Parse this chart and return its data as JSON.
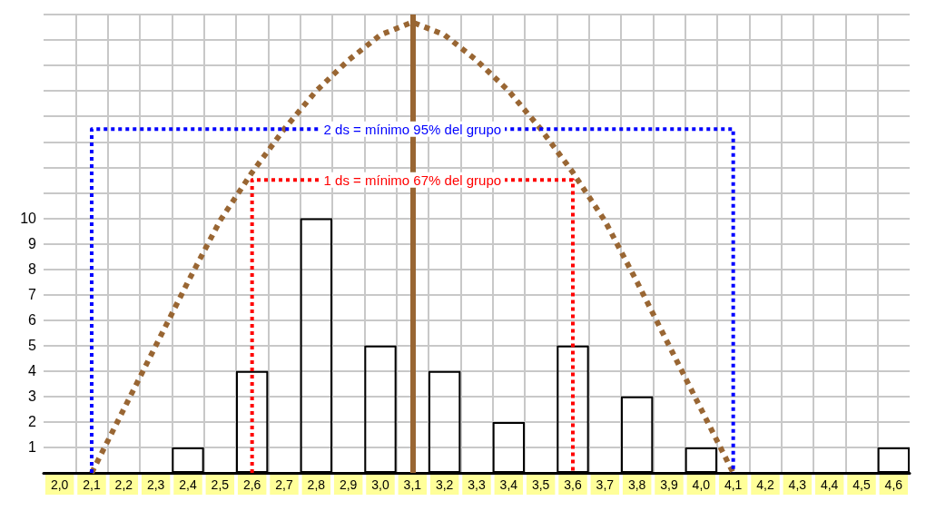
{
  "chart_data": {
    "type": "bar",
    "series": [
      {
        "color": "#000000",
        "x": [
          2.0,
          2.1,
          2.2,
          2.3,
          2.4,
          2.5,
          2.6,
          2.7,
          2.8,
          2.9,
          3.0,
          3.1,
          3.2,
          3.3,
          3.4,
          3.5,
          3.6,
          3.7,
          3.8,
          3.9,
          4.0,
          4.1,
          4.2,
          4.3,
          4.4,
          4.5,
          4.6
        ],
        "values": [
          0,
          0,
          0,
          0,
          1,
          0,
          4,
          0,
          10,
          0,
          5,
          0,
          4,
          0,
          2,
          0,
          5,
          0,
          3,
          0,
          1,
          0,
          0,
          0,
          0,
          0,
          1
        ]
      },
      {
        "type": "line",
        "color": "#996633",
        "line_style": "dotted",
        "x": [
          2.1,
          2.2,
          2.3,
          2.4,
          2.5,
          2.6,
          2.7,
          2.8,
          2.9,
          3.0,
          3.1,
          3.2,
          3.3,
          3.4,
          3.5,
          3.6,
          3.7,
          3.8,
          3.9,
          4.0,
          4.1
        ],
        "values": [
          0,
          2.5,
          5.0,
          7.5,
          9.9,
          11.8,
          13.5,
          15.0,
          16.2,
          17.2,
          17.7,
          17.2,
          16.2,
          15.0,
          13.5,
          11.8,
          9.9,
          7.5,
          5.0,
          2.5,
          0
        ]
      },
      {
        "type": "line",
        "name": "2 ds = mínimo 95% del grupo",
        "color": "#0000ff",
        "line_style": "dotted",
        "x": [
          2.1,
          2.1,
          4.1,
          4.1
        ],
        "values": [
          0,
          13.5,
          13.5,
          0
        ]
      },
      {
        "type": "line",
        "name": "1 ds = mínimo 67% del grupo",
        "color": "#ff0000",
        "line_style": "dotted",
        "x": [
          2.6,
          2.6,
          3.6,
          3.6
        ],
        "values": [
          0,
          11.5,
          11.5,
          0
        ]
      }
    ],
    "marker": "none",
    "xlim": [
      1.95,
      4.65
    ],
    "xticks": [
      {
        "value": 2.0,
        "label": "2,0"
      },
      {
        "value": 2.1,
        "label": "2,1"
      },
      {
        "value": 2.2,
        "label": "2,2"
      },
      {
        "value": 2.3,
        "label": "2,3"
      },
      {
        "value": 2.4,
        "label": "2,4"
      },
      {
        "value": 2.5,
        "label": "2,5"
      },
      {
        "value": 2.6,
        "label": "2,6"
      },
      {
        "value": 2.7,
        "label": "2,7"
      },
      {
        "value": 2.8,
        "label": "2,8"
      },
      {
        "value": 2.9,
        "label": "2,9"
      },
      {
        "value": 3.0,
        "label": "3,0"
      },
      {
        "value": 3.1,
        "label": "3,1"
      },
      {
        "value": 3.2,
        "label": "3,2"
      },
      {
        "value": 3.3,
        "label": "3,3"
      },
      {
        "value": 3.4,
        "label": "3,4"
      },
      {
        "value": 3.5,
        "label": "3,5"
      },
      {
        "value": 3.6,
        "label": "3,6"
      },
      {
        "value": 3.7,
        "label": "3,7"
      },
      {
        "value": 3.8,
        "label": "3,8"
      },
      {
        "value": 3.9,
        "label": "3,9"
      },
      {
        "value": 4.0,
        "label": "4,0"
      },
      {
        "value": 4.1,
        "label": "4,1"
      },
      {
        "value": 4.2,
        "label": "4,2"
      },
      {
        "value": 4.3,
        "label": "4,3"
      },
      {
        "value": 4.4,
        "label": "4,4"
      },
      {
        "value": 4.5,
        "label": "4,5"
      },
      {
        "value": 4.6,
        "label": "4,6"
      },
      {
        "value": 2.05,
        "label": null
      },
      {
        "value": 2.15,
        "label": null
      },
      {
        "value": 2.25,
        "label": null
      },
      {
        "value": 2.35,
        "label": null
      },
      {
        "value": 2.45,
        "label": null
      },
      {
        "value": 2.55,
        "label": null
      },
      {
        "value": 2.65,
        "label": null
      },
      {
        "value": 2.75,
        "label": null
      },
      {
        "value": 2.85,
        "label": null
      },
      {
        "value": 2.95,
        "label": null
      },
      {
        "value": 3.05,
        "label": null
      },
      {
        "value": 3.15,
        "label": null
      },
      {
        "value": 3.25,
        "label": null
      },
      {
        "value": 3.35,
        "label": null
      },
      {
        "value": 3.45,
        "label": null
      },
      {
        "value": 3.55,
        "label": null
      },
      {
        "value": 3.65,
        "label": null
      },
      {
        "value": 3.75,
        "label": null
      },
      {
        "value": 3.85,
        "label": null
      },
      {
        "value": 3.95,
        "label": null
      },
      {
        "value": 4.05,
        "label": null
      },
      {
        "value": 4.15,
        "label": null
      },
      {
        "value": 4.25,
        "label": null
      },
      {
        "value": 4.35,
        "label": null
      },
      {
        "value": 4.45,
        "label": null
      },
      {
        "value": 4.55,
        "label": null
      }
    ],
    "ylim": [
      0,
      18
    ],
    "yticks": [
      {
        "value": 0,
        "label": null
      },
      1,
      2,
      3,
      4,
      5,
      6,
      7,
      8,
      9,
      10,
      {
        "value": 11,
        "label": null
      },
      {
        "value": 12,
        "label": null
      },
      {
        "value": 13,
        "label": null
      },
      {
        "value": 14,
        "label": null
      },
      {
        "value": 15,
        "label": null
      },
      {
        "value": 16,
        "label": null
      },
      {
        "value": 17,
        "label": null
      },
      {
        "value": 18,
        "label": null
      }
    ],
    "grid": true,
    "ref_lines": [
      {
        "axis": "x",
        "value": 3.1,
        "color": "#996633",
        "line_style": "solid"
      }
    ]
  }
}
